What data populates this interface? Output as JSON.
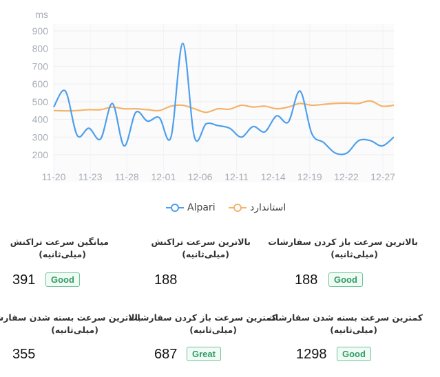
{
  "chart_data": {
    "type": "line",
    "yunit": "ms",
    "ylim": [
      200,
      900
    ],
    "yticks": [
      200,
      300,
      400,
      500,
      600,
      700,
      800,
      900
    ],
    "x_tick_labels": [
      "11-20",
      "11-23",
      "11-28",
      "12-01",
      "12-06",
      "12-11",
      "12-14",
      "12-19",
      "12-22",
      "12-27"
    ],
    "grid": true,
    "legend_position": "bottom-center",
    "series": [
      {
        "name": "Alpari",
        "color": "#4e9fec",
        "values": [
          470,
          560,
          310,
          350,
          290,
          490,
          250,
          440,
          390,
          410,
          300,
          830,
          300,
          375,
          365,
          350,
          300,
          360,
          330,
          420,
          385,
          560,
          320,
          270,
          210,
          210,
          280,
          280,
          250,
          300
        ]
      },
      {
        "name": "استاندارد",
        "color": "#f4b36a",
        "values": [
          450,
          448,
          450,
          455,
          455,
          470,
          460,
          460,
          455,
          450,
          475,
          480,
          460,
          440,
          460,
          458,
          480,
          470,
          475,
          460,
          470,
          490,
          480,
          485,
          490,
          492,
          490,
          505,
          475,
          480
        ]
      }
    ]
  },
  "stats": [
    {
      "title": "بالاترین سرعت باز کردن سفارشات",
      "sub": "(میلی‌ثانیه)",
      "value": "188",
      "badge": "Good"
    },
    {
      "title": "بالاترین سرعت تراکنش",
      "sub": "(میلی‌ثانیه)",
      "value": "188",
      "badge": ""
    },
    {
      "title": "میانگین سرعت تراکنش",
      "sub": "(میلی‌ثانیه)",
      "value": "391",
      "badge": "Good"
    },
    {
      "title": "کمترین سرعت بسته شدن  سفارشات",
      "sub": "(میلی‌ثانیه)",
      "value": "1298",
      "badge": "Good"
    },
    {
      "title": "کمترین سرعت باز کردن سفارشات",
      "sub": "(میلی‌ثانیه)",
      "value": "687",
      "badge": "Great"
    },
    {
      "title": "بالاترین سرعت بسته شدن  سفارشات",
      "sub": "(میلی‌ثانیه)",
      "value": "355",
      "badge": ""
    }
  ]
}
